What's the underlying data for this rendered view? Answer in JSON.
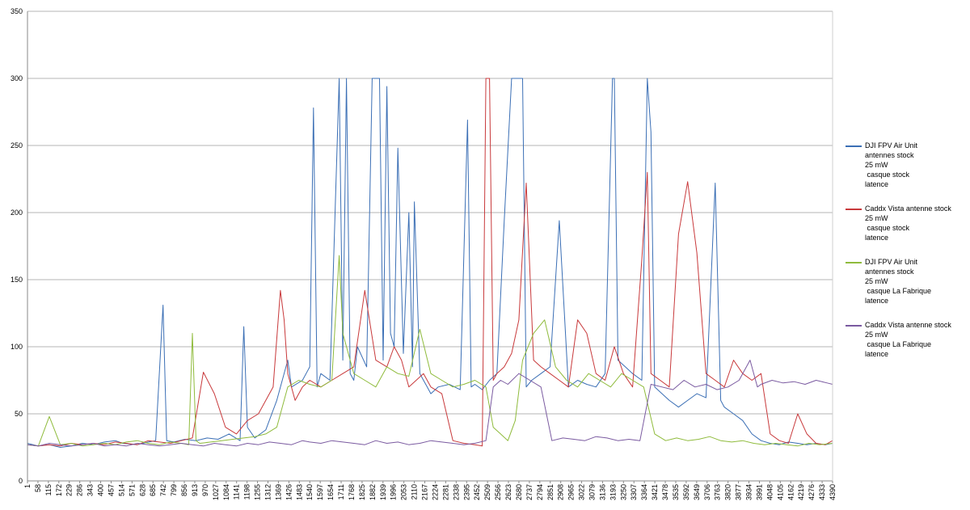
{
  "chart_data": {
    "type": "line",
    "title": "",
    "xlabel": "",
    "ylabel": "",
    "ylim": [
      0,
      350
    ],
    "yticks": [
      0,
      50,
      100,
      150,
      200,
      250,
      300,
      350
    ],
    "grid": true,
    "legend_position": "right",
    "x_tick_labels": [
      "1",
      "58",
      "115",
      "172",
      "229",
      "286",
      "343",
      "400",
      "457",
      "514",
      "571",
      "628",
      "685",
      "742",
      "799",
      "856",
      "913",
      "970",
      "1027",
      "1084",
      "1141",
      "1198",
      "1255",
      "1312",
      "1369",
      "1426",
      "1483",
      "1540",
      "1597",
      "1654",
      "1711",
      "1768",
      "1825",
      "1882",
      "1939",
      "1996",
      "2053",
      "2110",
      "2167",
      "2224",
      "2281",
      "2338",
      "2395",
      "2452",
      "2509",
      "2566",
      "2623",
      "2680",
      "2737",
      "2794",
      "2851",
      "2908",
      "2965",
      "3022",
      "3079",
      "3136",
      "3193",
      "3250",
      "3307",
      "3364",
      "3421",
      "3478",
      "3535",
      "3592",
      "3649",
      "3706",
      "3763",
      "3820",
      "3877",
      "3934",
      "3991",
      "4048",
      "4105",
      "4162",
      "4219",
      "4276",
      "4333",
      "4390"
    ],
    "x_range": [
      1,
      4390
    ],
    "series": [
      {
        "name": "DJI FPV Air Unit\nantennes stock\n25 mW\n casque stock\nlatence",
        "color": "#3b6fb5",
        "x": [
          1,
          60,
          120,
          180,
          240,
          300,
          360,
          420,
          480,
          520,
          600,
          660,
          700,
          740,
          760,
          800,
          860,
          920,
          980,
          1040,
          1100,
          1160,
          1180,
          1200,
          1240,
          1300,
          1360,
          1420,
          1440,
          1500,
          1540,
          1560,
          1580,
          1600,
          1650,
          1700,
          1720,
          1740,
          1760,
          1780,
          1800,
          1850,
          1880,
          1920,
          1940,
          1960,
          1980,
          2000,
          2020,
          2050,
          2080,
          2100,
          2110,
          2140,
          2160,
          2180,
          2200,
          2240,
          2300,
          2360,
          2400,
          2420,
          2440,
          2480,
          2520,
          2560,
          2600,
          2640,
          2680,
          2700,
          2720,
          2750,
          2800,
          2850,
          2900,
          2950,
          3000,
          3050,
          3100,
          3150,
          3190,
          3200,
          3220,
          3260,
          3300,
          3350,
          3380,
          3400,
          3420,
          3460,
          3500,
          3550,
          3600,
          3650,
          3700,
          3750,
          3780,
          3800,
          3850,
          3900,
          3950,
          4000,
          4050,
          4100,
          4150,
          4200,
          4250,
          4300,
          4350,
          4390
        ],
        "values": [
          28,
          26,
          27,
          25,
          26,
          28,
          27,
          29,
          30,
          28,
          27,
          29,
          30,
          131,
          30,
          29,
          31,
          30,
          32,
          31,
          35,
          30,
          115,
          40,
          32,
          38,
          60,
          90,
          70,
          75,
          85,
          278,
          70,
          80,
          75,
          300,
          90,
          300,
          80,
          75,
          100,
          85,
          300,
          300,
          90,
          294,
          110,
          100,
          248,
          95,
          200,
          85,
          208,
          80,
          75,
          70,
          65,
          70,
          72,
          68,
          269,
          70,
          72,
          68,
          75,
          80,
          194,
          300,
          300,
          300,
          70,
          75,
          80,
          85,
          194,
          70,
          75,
          72,
          70,
          80,
          300,
          300,
          90,
          85,
          80,
          75,
          300,
          260,
          70,
          65,
          60,
          55,
          60,
          65,
          62,
          222,
          60,
          55,
          50,
          45,
          35,
          30,
          28,
          27,
          29,
          28,
          27,
          28,
          27,
          28
        ]
      },
      {
        "name": "Caddx Vista antenne stock\n25 mW\n casque stock\nlatence",
        "color": "#c8393b",
        "x": [
          1,
          60,
          120,
          180,
          240,
          300,
          360,
          420,
          480,
          540,
          600,
          660,
          720,
          780,
          840,
          900,
          960,
          1020,
          1080,
          1140,
          1200,
          1260,
          1300,
          1340,
          1380,
          1400,
          1420,
          1460,
          1500,
          1540,
          1600,
          1660,
          1720,
          1780,
          1840,
          1900,
          1960,
          2000,
          2040,
          2080,
          2120,
          2160,
          2200,
          2260,
          2320,
          2380,
          2440,
          2480,
          2500,
          2520,
          2540,
          2560,
          2600,
          2640,
          2680,
          2720,
          2760,
          2800,
          2850,
          2900,
          2950,
          3000,
          3050,
          3100,
          3150,
          3200,
          3250,
          3300,
          3350,
          3380,
          3400,
          3450,
          3500,
          3550,
          3600,
          3650,
          3700,
          3750,
          3800,
          3850,
          3900,
          3950,
          4000,
          4050,
          4100,
          4150,
          4200,
          4250,
          4300,
          4350,
          4390
        ],
        "values": [
          27,
          26,
          27,
          26,
          28,
          27,
          28,
          27,
          29,
          28,
          27,
          30,
          29,
          28,
          30,
          32,
          81,
          65,
          40,
          35,
          45,
          50,
          60,
          70,
          142,
          120,
          80,
          60,
          70,
          75,
          70,
          75,
          80,
          85,
          142,
          90,
          85,
          100,
          90,
          70,
          75,
          80,
          70,
          65,
          30,
          28,
          27,
          26,
          300,
          300,
          75,
          80,
          85,
          95,
          120,
          222,
          90,
          85,
          80,
          75,
          70,
          120,
          110,
          80,
          75,
          100,
          80,
          70,
          165,
          230,
          80,
          75,
          70,
          184,
          223,
          170,
          80,
          75,
          70,
          90,
          80,
          75,
          80,
          35,
          30,
          28,
          50,
          35,
          28,
          27,
          30
        ]
      },
      {
        "name": "DJI FPV Air Unit\nantennes stock\n25 mW\n casque La Fabrique\nlatence",
        "color": "#8fbb3c",
        "x": [
          1,
          60,
          120,
          180,
          240,
          300,
          360,
          420,
          480,
          540,
          600,
          660,
          720,
          780,
          840,
          880,
          900,
          920,
          940,
          1000,
          1060,
          1120,
          1180,
          1240,
          1300,
          1360,
          1420,
          1480,
          1540,
          1600,
          1660,
          1700,
          1720,
          1780,
          1840,
          1900,
          1960,
          2020,
          2080,
          2140,
          2200,
          2260,
          2320,
          2380,
          2440,
          2500,
          2540,
          2580,
          2620,
          2660,
          2700,
          2760,
          2820,
          2880,
          2940,
          3000,
          3060,
          3120,
          3180,
          3240,
          3300,
          3360,
          3420,
          3480,
          3540,
          3600,
          3660,
          3720,
          3780,
          3840,
          3900,
          3960,
          4020,
          4080,
          4140,
          4200,
          4260,
          4320,
          4390
        ],
        "values": [
          27,
          26,
          48,
          27,
          28,
          26,
          27,
          28,
          27,
          29,
          30,
          28,
          27,
          29,
          28,
          27,
          110,
          30,
          28,
          29,
          30,
          31,
          32,
          33,
          35,
          40,
          70,
          75,
          72,
          70,
          75,
          168,
          110,
          80,
          75,
          70,
          85,
          80,
          78,
          113,
          80,
          75,
          70,
          72,
          75,
          70,
          40,
          35,
          30,
          45,
          90,
          110,
          120,
          85,
          75,
          70,
          80,
          75,
          70,
          80,
          75,
          70,
          35,
          30,
          32,
          30,
          31,
          33,
          30,
          29,
          30,
          28,
          27,
          28,
          27,
          26,
          28,
          27,
          28
        ]
      },
      {
        "name": "Caddx Vista antenne stock\n25 mW\n casque La Fabrique\nlatence",
        "color": "#7a5aa0",
        "x": [
          1,
          60,
          120,
          180,
          240,
          300,
          360,
          420,
          480,
          540,
          600,
          660,
          720,
          780,
          840,
          900,
          960,
          1020,
          1080,
          1140,
          1200,
          1260,
          1320,
          1380,
          1440,
          1500,
          1540,
          1600,
          1660,
          1720,
          1780,
          1840,
          1900,
          1960,
          2020,
          2080,
          2140,
          2200,
          2260,
          2320,
          2380,
          2440,
          2500,
          2540,
          2580,
          2620,
          2680,
          2740,
          2800,
          2860,
          2920,
          2980,
          3040,
          3100,
          3160,
          3220,
          3280,
          3340,
          3400,
          3460,
          3520,
          3580,
          3640,
          3700,
          3760,
          3820,
          3880,
          3940,
          3980,
          4000,
          4060,
          4120,
          4180,
          4240,
          4300,
          4360,
          4390
        ],
        "values": [
          27,
          26,
          28,
          27,
          26,
          27,
          28,
          26,
          27,
          26,
          28,
          27,
          26,
          27,
          28,
          27,
          26,
          28,
          27,
          26,
          28,
          27,
          29,
          28,
          27,
          30,
          29,
          28,
          30,
          29,
          28,
          27,
          30,
          28,
          29,
          27,
          28,
          30,
          29,
          28,
          27,
          28,
          30,
          70,
          75,
          72,
          80,
          75,
          70,
          30,
          32,
          31,
          30,
          33,
          32,
          30,
          31,
          30,
          72,
          70,
          68,
          75,
          70,
          72,
          68,
          70,
          75,
          90,
          70,
          72,
          75,
          73,
          74,
          72,
          75,
          73,
          72
        ]
      }
    ]
  }
}
